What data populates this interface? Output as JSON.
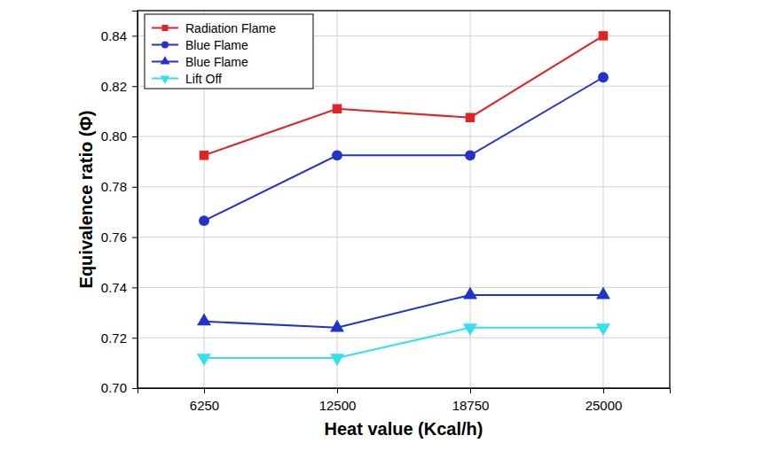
{
  "chart_data": {
    "type": "line",
    "x_label": "Heat value (Kcal/h)",
    "y_label": "Equivalence ratio (Φ)",
    "categories": [
      "6250",
      "12500",
      "18750",
      "25000"
    ],
    "series": [
      {
        "name": "Radiation Flame",
        "color": "#e02424",
        "marker": "square",
        "values": [
          0.7925,
          0.811,
          0.8075,
          0.84
        ]
      },
      {
        "name": "Blue Flame",
        "color": "#2233cc",
        "marker": "circle",
        "values": [
          0.7665,
          0.7925,
          0.7925,
          0.8235
        ]
      },
      {
        "name": "Blue Flame",
        "color": "#2233cc",
        "marker": "triangle-up",
        "values": [
          0.7265,
          0.724,
          0.737,
          0.737
        ]
      },
      {
        "name": "Lift Off",
        "color": "#33e0ee",
        "marker": "triangle-down",
        "values": [
          0.712,
          0.712,
          0.724,
          0.724
        ]
      }
    ],
    "ylim": [
      0.7,
      0.85
    ],
    "yticks": [
      {
        "value": 0.7,
        "label": "0.70"
      },
      0.72,
      0.74,
      0.76,
      0.78,
      {
        "value": 0.8,
        "label": "0.80"
      },
      0.82,
      0.84
    ],
    "grid": true,
    "legend": "top-left"
  }
}
